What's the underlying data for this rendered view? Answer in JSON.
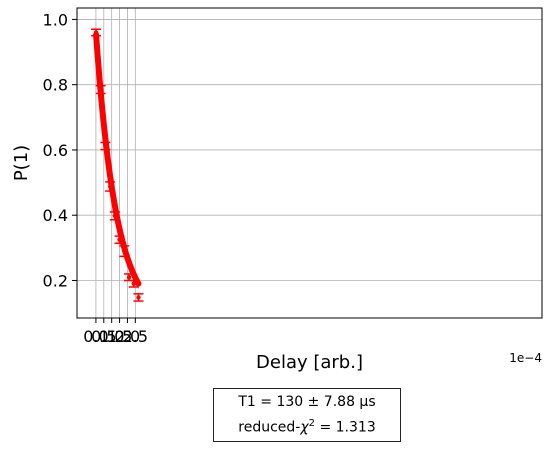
{
  "chart_data": {
    "type": "scatter",
    "xlabel": "Delay [arb.]",
    "ylabel": "P(1)",
    "x_offset_label": "1e−4",
    "xlim": [
      -0.00012,
      0.00283
    ],
    "ylim": [
      0.085,
      1.035
    ],
    "grid": true,
    "x_ticks": [
      0.0,
      5e-05,
      0.0001,
      0.00015,
      0.0002,
      0.00025
    ],
    "x_tick_labels": [
      "0.0",
      "0.5",
      "1.0",
      "1.5",
      "2.0",
      "2.5"
    ],
    "y_ticks": [
      0.2,
      0.4,
      0.6,
      0.8,
      1.0
    ],
    "y_tick_labels": [
      "0.2",
      "0.4",
      "0.6",
      "0.8",
      "1.0"
    ],
    "colors": {
      "data": "#ff0000",
      "fit": "#ff0000",
      "band": "#f08080",
      "grid": "#b0b0b0"
    },
    "series": [
      {
        "x": [
          1e-06,
          3e-05,
          6e-05,
          9e-05,
          0.00012,
          0.00015,
          0.00018,
          0.00021,
          0.00024,
          0.00027
        ],
        "y": [
          0.96,
          0.785,
          0.612,
          0.488,
          0.398,
          0.325,
          0.29,
          0.21,
          0.19,
          0.148
        ],
        "yerr": [
          0.01,
          0.012,
          0.011,
          0.014,
          0.012,
          0.011,
          0.016,
          0.01,
          0.01,
          0.011
        ]
      }
    ],
    "fit": {
      "model": "exponential decay",
      "amplitude": 0.88,
      "t1": 0.00013,
      "offset": 0.08
    },
    "fit_text": {
      "line1": "T1 =   130 ±  7.88 µs",
      "line2_prefix": "reduced-",
      "line2_symbol": "χ",
      "line2_sup": "2",
      "line2_suffix": " =  1.313"
    }
  }
}
